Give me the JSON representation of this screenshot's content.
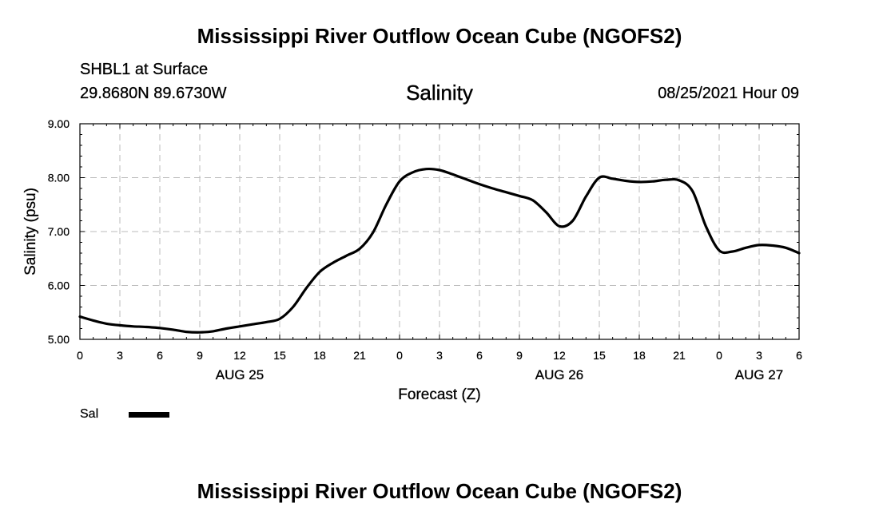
{
  "page": {
    "main_title": "Mississippi River Outflow Ocean Cube (NGOFS2)",
    "footer_title": "Mississippi River Outflow Ocean Cube (NGOFS2)",
    "station_name": "SHBL1 at Surface",
    "station_coords": "29.8680N  89.6730W",
    "chart_title": "Salinity",
    "run_time": "08/25/2021 Hour 09"
  },
  "chart_data": {
    "type": "line",
    "title": "Salinity",
    "xlabel": "Forecast (Z)",
    "ylabel": "Salinity (psu)",
    "xlim": [
      0,
      54
    ],
    "ylim": [
      5.0,
      9.0
    ],
    "y_ticks": [
      5.0,
      6.0,
      7.0,
      8.0,
      9.0
    ],
    "y_tick_labels": [
      "5.00",
      "6.00",
      "7.00",
      "8.00",
      "9.00"
    ],
    "x_ticks": [
      0,
      3,
      6,
      9,
      12,
      15,
      18,
      21,
      24,
      27,
      30,
      33,
      36,
      39,
      42,
      45,
      48,
      51,
      54
    ],
    "x_tick_labels": [
      "0",
      "3",
      "6",
      "9",
      "12",
      "15",
      "18",
      "21",
      "0",
      "3",
      "6",
      "9",
      "12",
      "15",
      "18",
      "21",
      "0",
      "3",
      "6"
    ],
    "date_labels": [
      {
        "x": 12,
        "label": "AUG 25"
      },
      {
        "x": 36,
        "label": "AUG 26"
      },
      {
        "x": 51,
        "label": "AUG 27"
      }
    ],
    "grid": true,
    "legend": "bottom-left",
    "series": [
      {
        "name": "Sal",
        "color": "#000000",
        "x": [
          0,
          1,
          2,
          3,
          4,
          5,
          6,
          7,
          8,
          9,
          10,
          11,
          12,
          13,
          14,
          15,
          16,
          17,
          18,
          19,
          20,
          21,
          22,
          23,
          24,
          25,
          26,
          27,
          28,
          29,
          30,
          31,
          32,
          33,
          34,
          35,
          36,
          37,
          38,
          39,
          40,
          41,
          42,
          43,
          44,
          45,
          46,
          47,
          48,
          49,
          50,
          51,
          52,
          53,
          54
        ],
        "values": [
          5.42,
          5.35,
          5.29,
          5.26,
          5.24,
          5.23,
          5.21,
          5.18,
          5.14,
          5.13,
          5.15,
          5.2,
          5.24,
          5.28,
          5.32,
          5.38,
          5.6,
          5.95,
          6.25,
          6.42,
          6.55,
          6.68,
          6.98,
          7.5,
          7.93,
          8.1,
          8.16,
          8.14,
          8.06,
          7.97,
          7.88,
          7.8,
          7.73,
          7.66,
          7.58,
          7.36,
          7.1,
          7.2,
          7.65,
          8.0,
          7.98,
          7.94,
          7.92,
          7.93,
          7.96,
          7.95,
          7.75,
          7.1,
          6.65,
          6.63,
          6.7,
          6.75,
          6.74,
          6.7,
          6.6
        ]
      }
    ]
  },
  "legend": {
    "label": "Sal"
  }
}
